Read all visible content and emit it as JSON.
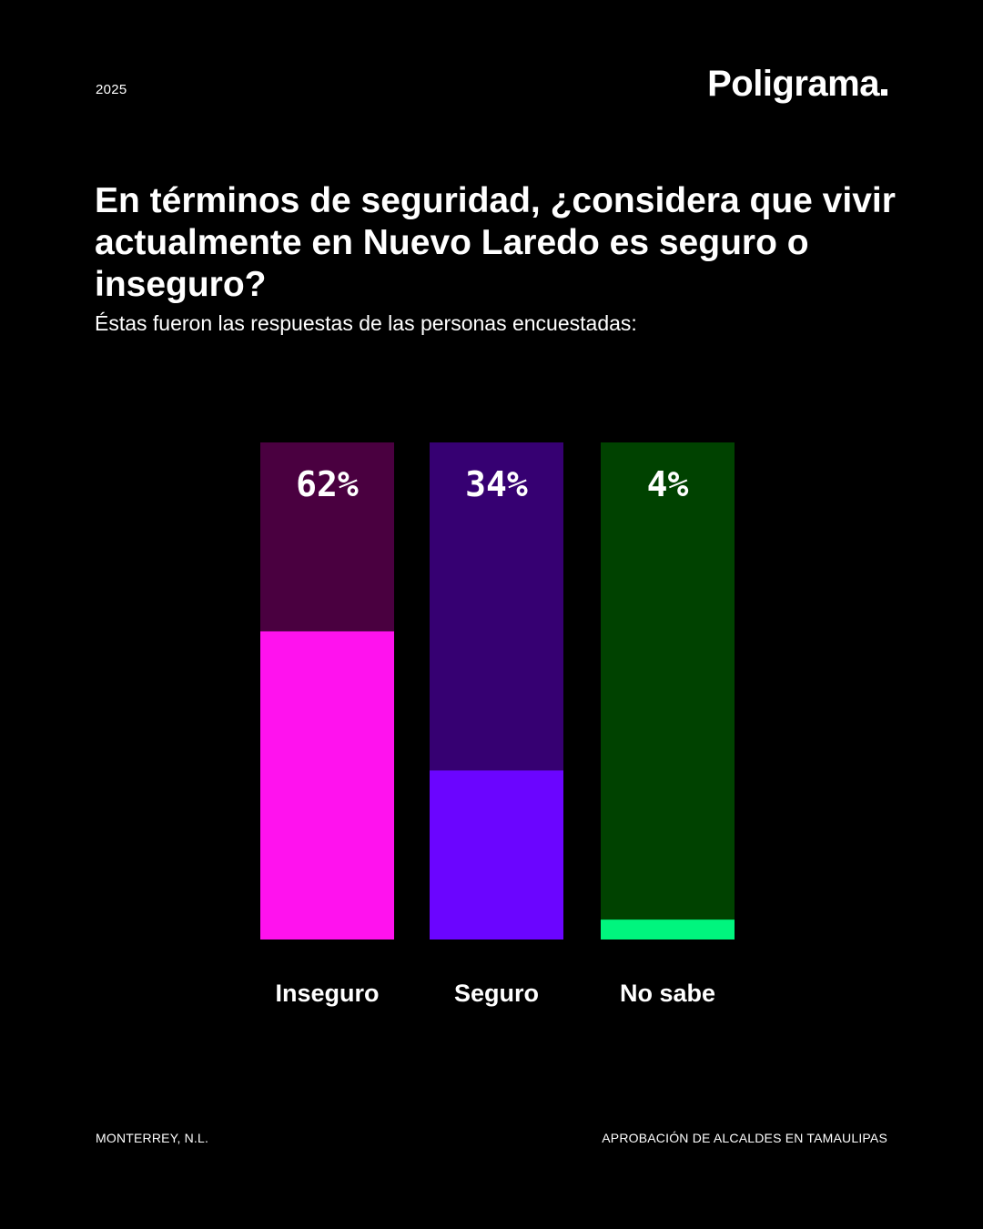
{
  "header": {
    "year": "2025",
    "brand": "Poligrama"
  },
  "question": {
    "title": "En términos de seguridad, ¿considera que vivir actualmente en Nuevo Laredo es seguro o inseguro?",
    "subtitle": "Éstas fueron las respuestas de las personas encuestadas:"
  },
  "footer": {
    "location": "MONTERREY, N.L.",
    "series_title": "APROBACIÓN DE ALCALDES EN TAMAULIPAS"
  },
  "chart_data": {
    "type": "bar",
    "categories": [
      "Inseguro",
      "Seguro",
      "No sabe"
    ],
    "values": [
      62,
      34,
      4
    ],
    "value_labels": [
      "62%",
      "34%",
      "4%"
    ],
    "ylim": [
      0,
      100
    ],
    "unit": "%",
    "grid": false,
    "colors": {
      "fill": [
        "#ff12ee",
        "#6b05ff",
        "#00f57e"
      ],
      "track": [
        "#4a0040",
        "#360072",
        "#004200"
      ]
    }
  }
}
